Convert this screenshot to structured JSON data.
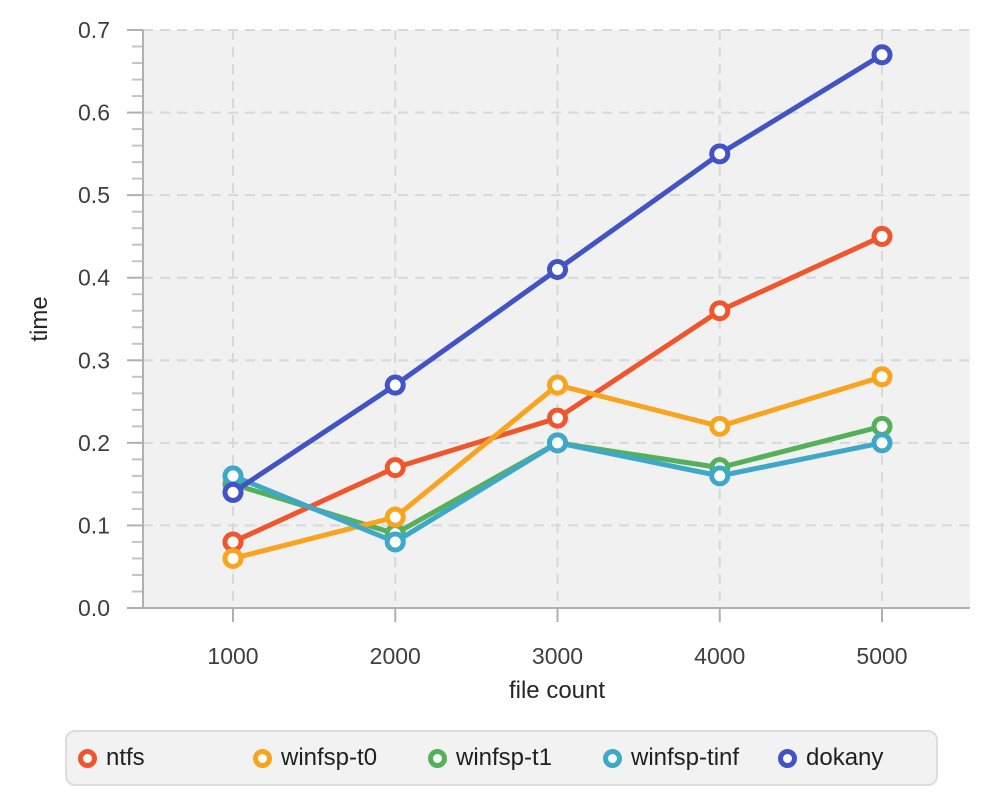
{
  "chart_data": {
    "type": "line",
    "title": "",
    "xlabel": "file count",
    "ylabel": "time",
    "x": [
      1000,
      2000,
      3000,
      4000,
      5000
    ],
    "x_tick_labels": [
      "1000",
      "2000",
      "3000",
      "4000",
      "5000"
    ],
    "y_ticks": [
      0.0,
      0.1,
      0.2,
      0.3,
      0.4,
      0.5,
      0.6,
      0.7
    ],
    "y_tick_labels": [
      "0.0",
      "0.1",
      "0.2",
      "0.3",
      "0.4",
      "0.5",
      "0.6",
      "0.7"
    ],
    "ylim": [
      0,
      0.7
    ],
    "y_minor_tick_step": 0.02,
    "grid": "dashed",
    "legend_position": "bottom",
    "series": [
      {
        "name": "ntfs",
        "color": "#f0562d",
        "values": [
          0.08,
          0.17,
          0.23,
          0.36,
          0.45
        ]
      },
      {
        "name": "winfsp-t0",
        "color": "#f9a41f",
        "values": [
          0.06,
          0.11,
          0.27,
          0.22,
          0.28
        ]
      },
      {
        "name": "winfsp-t1",
        "color": "#55b05c",
        "values": [
          0.15,
          0.09,
          0.2,
          0.17,
          0.22
        ]
      },
      {
        "name": "winfsp-tinf",
        "color": "#3fa7c7",
        "values": [
          0.16,
          0.08,
          0.2,
          0.16,
          0.2
        ]
      },
      {
        "name": "dokany",
        "color": "#4153c5",
        "values": [
          0.14,
          0.27,
          0.41,
          0.55,
          0.67
        ]
      }
    ],
    "draw_order": [
      "winfsp-t1",
      "ntfs",
      "winfsp-t0",
      "winfsp-tinf",
      "dokany"
    ],
    "marker": "open-circle",
    "colors": {
      "plot_background": "#f1f1f1",
      "grid_line": "#d8d8d8",
      "axis_line": "#b0b0b0",
      "minor_tick": "#c4c4c4",
      "tick_label": "#3f3f3f",
      "axis_title": "#262626",
      "legend_background": "#f2f2f2",
      "legend_border": "#dcdcdc",
      "legend_text": "#1f1f1f"
    }
  }
}
